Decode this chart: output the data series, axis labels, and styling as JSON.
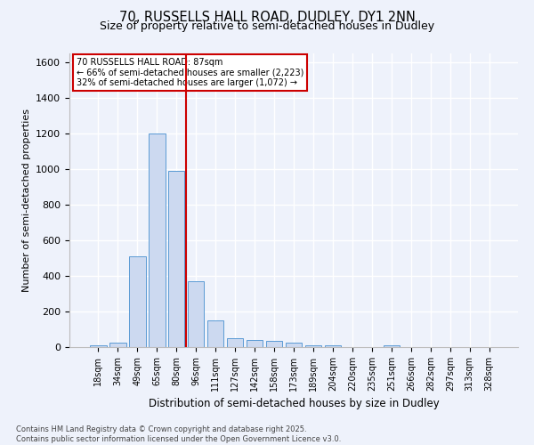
{
  "title1": "70, RUSSELLS HALL ROAD, DUDLEY, DY1 2NN",
  "title2": "Size of property relative to semi-detached houses in Dudley",
  "xlabel": "Distribution of semi-detached houses by size in Dudley",
  "ylabel": "Number of semi-detached properties",
  "categories": [
    "18sqm",
    "34sqm",
    "49sqm",
    "65sqm",
    "80sqm",
    "96sqm",
    "111sqm",
    "127sqm",
    "142sqm",
    "158sqm",
    "173sqm",
    "189sqm",
    "204sqm",
    "220sqm",
    "235sqm",
    "251sqm",
    "266sqm",
    "282sqm",
    "297sqm",
    "313sqm",
    "328sqm"
  ],
  "values": [
    10,
    25,
    510,
    1200,
    990,
    370,
    148,
    52,
    40,
    33,
    25,
    10,
    10,
    0,
    0,
    10,
    0,
    0,
    0,
    0,
    0
  ],
  "bar_color": "#ccd9f0",
  "bar_edge_color": "#5b9bd5",
  "vline_x": 4.5,
  "vline_color": "#cc0000",
  "annotation_title": "70 RUSSELLS HALL ROAD: 87sqm",
  "annotation_line2": "← 66% of semi-detached houses are smaller (2,223)",
  "annotation_line3": "32% of semi-detached houses are larger (1,072) →",
  "annotation_box_color": "#ffffff",
  "annotation_box_edge": "#cc0000",
  "ylim": [
    0,
    1650
  ],
  "yticks": [
    0,
    200,
    400,
    600,
    800,
    1000,
    1200,
    1400,
    1600
  ],
  "footer_line1": "Contains HM Land Registry data © Crown copyright and database right 2025.",
  "footer_line2": "Contains public sector information licensed under the Open Government Licence v3.0.",
  "bg_color": "#eef2fb",
  "grid_color": "#ffffff"
}
